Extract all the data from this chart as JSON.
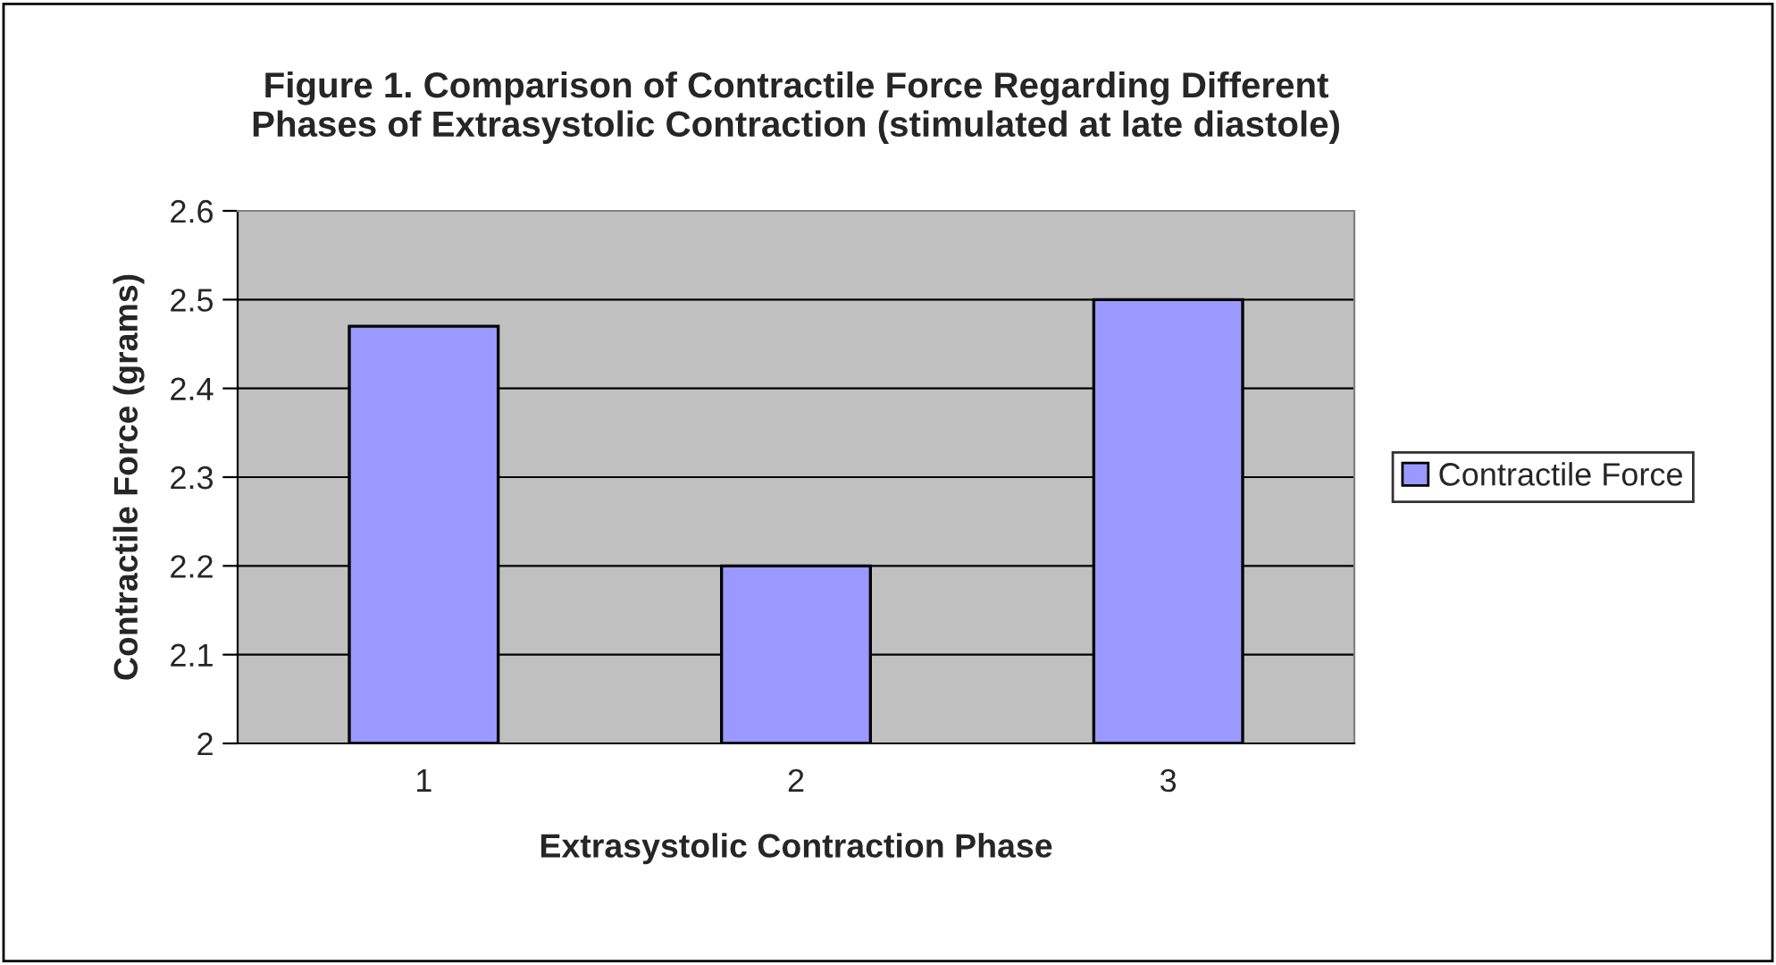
{
  "chart_data": {
    "type": "bar",
    "title": "Figure 1. Comparison of Contractile Force Regarding Different\nPhases of Extrasystolic Contraction (stimulated at late diastole)",
    "xlabel": "Extrasystolic Contraction Phase",
    "ylabel": "Contractile Force (grams)",
    "categories": [
      "1",
      "2",
      "3"
    ],
    "series": [
      {
        "name": "Contractile Force",
        "color": "#9999ff",
        "values": [
          2.47,
          2.2,
          2.5
        ]
      }
    ],
    "ylim": [
      2,
      2.6
    ],
    "yticks": [
      2,
      2.1,
      2.2,
      2.3,
      2.4,
      2.5,
      2.6
    ],
    "grid": "y",
    "legend": "right"
  }
}
